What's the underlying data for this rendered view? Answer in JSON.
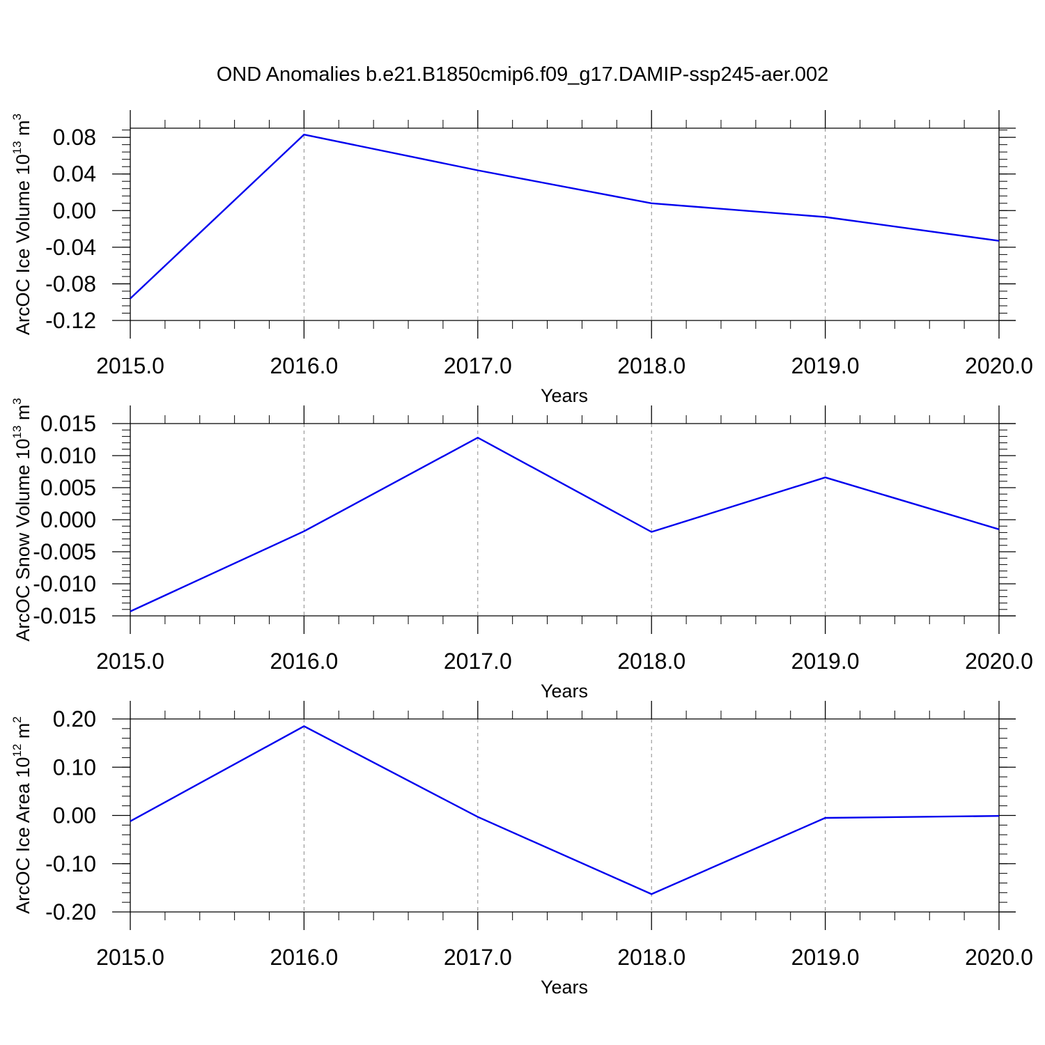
{
  "figure": {
    "title": "OND Anomalies b.e21.B1850cmip6.f09_g17.DAMIP-ssp245-aer.002",
    "line_color": "#0000ee"
  },
  "chart_data": [
    {
      "type": "line",
      "xlabel": "Years",
      "ylabel": {
        "text": "ArcOC Ice Volume 10",
        "exp1": "13",
        "mid": " m",
        "exp2": "3"
      },
      "x": [
        2015,
        2016,
        2017,
        2018,
        2019,
        2020
      ],
      "series": [
        {
          "values": [
            -0.096,
            0.083,
            0.044,
            0.008,
            -0.007,
            -0.033
          ]
        }
      ],
      "xlim": [
        2015,
        2020
      ],
      "ylim": [
        -0.12,
        0.09
      ],
      "xticks": [
        2015,
        2016,
        2017,
        2018,
        2019,
        2020
      ],
      "xtick_labels": [
        "2015.0",
        "2016.0",
        "2017.0",
        "2018.0",
        "2019.0",
        "2020.0"
      ],
      "yticks": [
        -0.12,
        -0.08,
        -0.04,
        0.0,
        0.04,
        0.08
      ],
      "ytick_labels": [
        "-0.12",
        "-0.08",
        "-0.04",
        "0.00",
        "0.04",
        "0.08"
      ],
      "yminor_step": 0.008,
      "vertical_grid": "dashed"
    },
    {
      "type": "line",
      "xlabel": "Years",
      "ylabel": {
        "text": "ArcOC Snow Volume 10",
        "exp1": "13",
        "mid": " m",
        "exp2": "3"
      },
      "x": [
        2015,
        2016,
        2017,
        2018,
        2019,
        2020
      ],
      "series": [
        {
          "values": [
            -0.0143,
            -0.0018,
            0.0128,
            -0.0019,
            0.0066,
            -0.0015
          ]
        }
      ],
      "xlim": [
        2015,
        2020
      ],
      "ylim": [
        -0.015,
        0.015
      ],
      "xticks": [
        2015,
        2016,
        2017,
        2018,
        2019,
        2020
      ],
      "xtick_labels": [
        "2015.0",
        "2016.0",
        "2017.0",
        "2018.0",
        "2019.0",
        "2020.0"
      ],
      "yticks": [
        -0.015,
        -0.01,
        -0.005,
        0.0,
        0.005,
        0.01,
        0.015
      ],
      "ytick_labels": [
        "-0.015",
        "-0.010",
        "-0.005",
        "0.000",
        "0.005",
        "0.010",
        "0.015"
      ],
      "yminor_step": 0.001,
      "vertical_grid": "dashed"
    },
    {
      "type": "line",
      "xlabel": "Years",
      "ylabel": {
        "text": "ArcOC Ice Area 10",
        "exp1": "12",
        "mid": " m",
        "exp2": "2"
      },
      "x": [
        2015,
        2016,
        2017,
        2018,
        2019,
        2020
      ],
      "series": [
        {
          "values": [
            -0.012,
            0.185,
            -0.003,
            -0.163,
            -0.005,
            -0.001
          ]
        }
      ],
      "xlim": [
        2015,
        2020
      ],
      "ylim": [
        -0.2,
        0.2
      ],
      "xticks": [
        2015,
        2016,
        2017,
        2018,
        2019,
        2020
      ],
      "xtick_labels": [
        "2015.0",
        "2016.0",
        "2017.0",
        "2018.0",
        "2019.0",
        "2020.0"
      ],
      "yticks": [
        -0.2,
        -0.1,
        0.0,
        0.1,
        0.2
      ],
      "ytick_labels": [
        "-0.20",
        "-0.10",
        "0.00",
        "0.10",
        "0.20"
      ],
      "yminor_step": 0.02,
      "vertical_grid": "dashed"
    }
  ]
}
